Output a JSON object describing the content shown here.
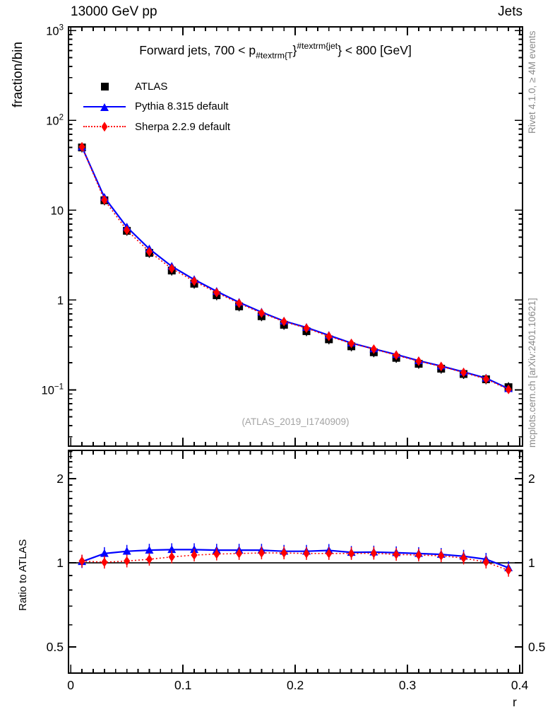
{
  "header": {
    "left": "13000 GeV pp",
    "right": "Jets"
  },
  "title": {
    "prefix": "Forward jets, 700 < p",
    "sub": "#textrm{T",
    "brace": "}",
    "sup": "#textrm{jet",
    "suffix": "} < 800 [GeV]"
  },
  "legend": [
    {
      "label": "ATLAS",
      "marker": "square",
      "line": "none",
      "color": "#000000"
    },
    {
      "label": "Pythia 8.315 default",
      "marker": "triangle",
      "line": "solid",
      "color": "#0000ff"
    },
    {
      "label": "Sherpa 2.2.9 default",
      "marker": "diamond",
      "line": "dotted",
      "color": "#ff0000"
    }
  ],
  "axes": {
    "main_ylabel": "fraction/bin",
    "ratio_ylabel": "Ratio to ATLAS",
    "xlabel": "r"
  },
  "watermark": {
    "text": "(ATLAS_2019_I1740909)"
  },
  "side_notes": {
    "top": "Rivet 4.1.0, ≥ 4M events",
    "bottom": "mcplots.cern.ch [arXiv:2401.10621]"
  },
  "colors": {
    "atlas": "#000000",
    "pythia": "#0000ff",
    "sherpa": "#ff0000",
    "frame": "#000000",
    "gray_note": "#8b8b8b",
    "watermark": "#a3a3a3"
  },
  "chart_data": [
    {
      "type": "line",
      "panel": "main",
      "title": "Forward jets, 700 < p_{T}^{jet} < 800 [GeV]",
      "xlabel": "r",
      "ylabel": "fraction/bin",
      "xscale": "linear",
      "yscale": "log",
      "xlim": [
        -0.002,
        0.4025
      ],
      "ylim": [
        0.0236,
        1101
      ],
      "grid": false,
      "legend_position": "upper left",
      "x": [
        0.01,
        0.03,
        0.05,
        0.07,
        0.09,
        0.11,
        0.13,
        0.15,
        0.17,
        0.19,
        0.21,
        0.23,
        0.25,
        0.27,
        0.29,
        0.31,
        0.33,
        0.35,
        0.37,
        0.39
      ],
      "series": [
        {
          "name": "ATLAS",
          "marker": "square",
          "color": "#000000",
          "line": "none",
          "values": [
            50,
            12.9,
            5.9,
            3.35,
            2.13,
            1.52,
            1.13,
            0.85,
            0.66,
            0.53,
            0.45,
            0.365,
            0.305,
            0.262,
            0.227,
            0.195,
            0.172,
            0.15,
            0.131,
            0.107
          ]
        },
        {
          "name": "Pythia 8.315 default",
          "marker": "triangle",
          "color": "#0000ff",
          "line": "solid",
          "values": [
            50.5,
            13.9,
            6.49,
            3.71,
            2.37,
            1.69,
            1.25,
            0.943,
            0.733,
            0.583,
            0.495,
            0.404,
            0.332,
            0.286,
            0.247,
            0.211,
            0.184,
            0.158,
            0.135,
            0.103
          ]
        },
        {
          "name": "Sherpa 2.2.9 default",
          "marker": "diamond",
          "color": "#ff0000",
          "line": "dotted",
          "values": [
            50.8,
            13.0,
            5.99,
            3.45,
            2.24,
            1.62,
            1.21,
            0.918,
            0.716,
            0.575,
            0.486,
            0.394,
            0.329,
            0.284,
            0.243,
            0.208,
            0.182,
            0.156,
            0.132,
            0.101
          ]
        }
      ],
      "ytick_labels": [
        {
          "v": 1000,
          "base": "10",
          "exp": "3"
        },
        {
          "v": 100,
          "base": "10",
          "exp": "2"
        },
        {
          "v": 10,
          "base": "10",
          "exp": ""
        },
        {
          "v": 1,
          "base": "1",
          "exp": ""
        },
        {
          "v": 0.1,
          "base": "10",
          "exp": "−1"
        }
      ]
    },
    {
      "type": "line",
      "panel": "ratio",
      "ylabel": "Ratio to ATLAS",
      "xscale": "linear",
      "yscale": "log",
      "xlim": [
        -0.002,
        0.4025
      ],
      "ylim": [
        0.403,
        2.527
      ],
      "reference_line": 1,
      "x": [
        0.01,
        0.03,
        0.05,
        0.07,
        0.09,
        0.11,
        0.13,
        0.15,
        0.17,
        0.19,
        0.21,
        0.23,
        0.25,
        0.27,
        0.29,
        0.31,
        0.33,
        0.35,
        0.37,
        0.39
      ],
      "series": [
        {
          "name": "Pythia 8.315 default",
          "marker": "triangle",
          "color": "#0000ff",
          "line": "solid",
          "values": [
            1.01,
            1.08,
            1.1,
            1.11,
            1.115,
            1.115,
            1.11,
            1.11,
            1.11,
            1.1,
            1.1,
            1.108,
            1.09,
            1.093,
            1.087,
            1.08,
            1.072,
            1.056,
            1.03,
            0.96
          ]
        },
        {
          "name": "Sherpa 2.2.9 default",
          "marker": "diamond",
          "color": "#ff0000",
          "line": "dotted",
          "values": [
            1.015,
            1.005,
            1.015,
            1.03,
            1.05,
            1.066,
            1.075,
            1.08,
            1.085,
            1.085,
            1.08,
            1.08,
            1.08,
            1.082,
            1.072,
            1.066,
            1.06,
            1.04,
            1.006,
            0.94
          ]
        }
      ],
      "ytick_labels": [
        {
          "v": 2,
          "t": "2"
        },
        {
          "v": 1,
          "t": "1"
        },
        {
          "v": 0.5,
          "t": "0.5"
        }
      ],
      "xtick_labels": [
        {
          "v": 0,
          "t": "0"
        },
        {
          "v": 0.1,
          "t": "0.1"
        },
        {
          "v": 0.2,
          "t": "0.2"
        },
        {
          "v": 0.3,
          "t": "0.3"
        },
        {
          "v": 0.4,
          "t": "0.4"
        }
      ]
    }
  ]
}
